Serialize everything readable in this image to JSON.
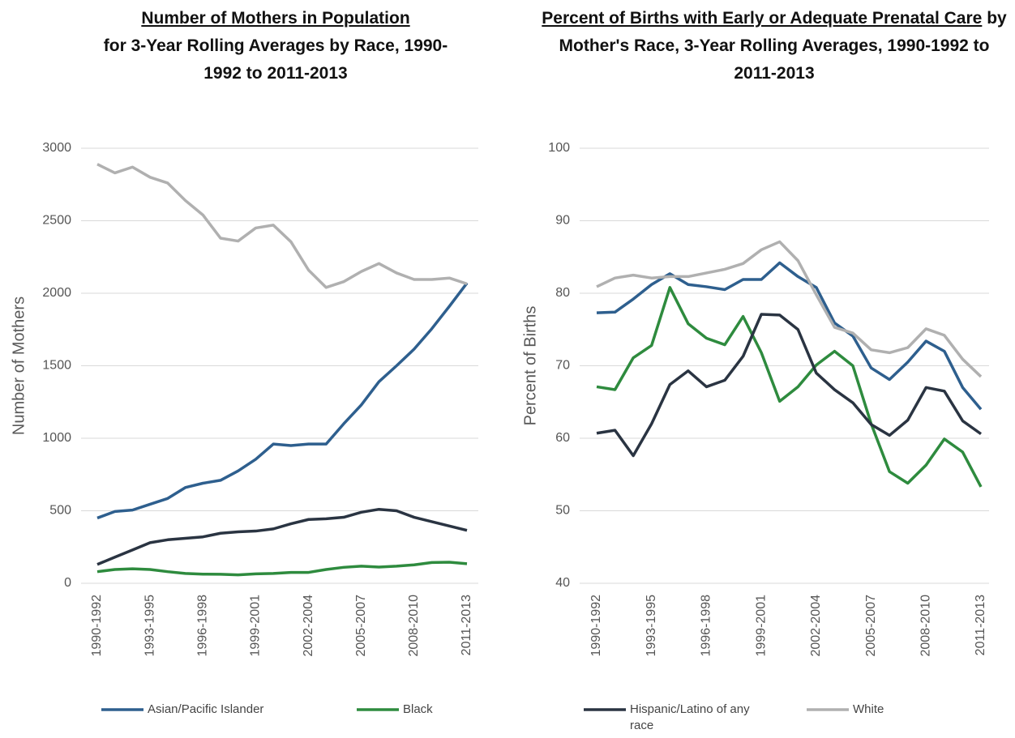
{
  "chart_data": [
    {
      "type": "line",
      "title": "Number of Mothers in Population",
      "subtitle": "for 3-Year Rolling Averages by Race, 1990-1992 to 2011-2013",
      "y_label": "Number of Mothers",
      "categories": [
        "1990-1992",
        null,
        null,
        "1993-1995",
        null,
        null,
        "1996-1998",
        null,
        null,
        "1999-2001",
        null,
        null,
        "2002-2004",
        null,
        null,
        "2005-2007",
        null,
        null,
        "2008-2010",
        null,
        null,
        "2011-2013"
      ],
      "ylim": [
        0,
        3000
      ],
      "yticks": [
        0,
        500,
        1000,
        1500,
        2000,
        2500,
        3000
      ],
      "grid": true,
      "series": [
        {
          "name": "Asian/Pacific Islander",
          "color": "#2e5f8e",
          "values": [
            450,
            495,
            505,
            545,
            585,
            660,
            690,
            710,
            775,
            855,
            960,
            950,
            960,
            960,
            1100,
            1230,
            1390,
            1500,
            1615,
            1755,
            1910,
            2070
          ]
        },
        {
          "name": "Black",
          "color": "#2e8b3e",
          "values": [
            80,
            95,
            100,
            95,
            80,
            68,
            63,
            62,
            58,
            65,
            68,
            75,
            75,
            95,
            110,
            118,
            112,
            118,
            127,
            143,
            145,
            135
          ]
        },
        {
          "color": "#2a3442",
          "values": [
            130,
            180,
            230,
            280,
            300,
            310,
            320,
            345,
            355,
            360,
            375,
            410,
            440,
            445,
            455,
            490,
            510,
            500,
            455,
            425,
            395,
            365
          ]
        },
        {
          "color": "#b0b0b0",
          "values": [
            2890,
            2830,
            2870,
            2800,
            2760,
            2640,
            2540,
            2380,
            2360,
            2450,
            2470,
            2355,
            2160,
            2040,
            2080,
            2150,
            2205,
            2140,
            2095,
            2095,
            2105,
            2065
          ]
        }
      ]
    },
    {
      "type": "line",
      "title": "Percent of Births with Early or Adequate Prenatal Care",
      "subtitle": "by Mother's Race, 3-Year Rolling Averages, 1990-1992 to 2011-2013",
      "y_label": "Percent of Births",
      "categories": [
        "1990-1992",
        null,
        null,
        "1993-1995",
        null,
        null,
        "1996-1998",
        null,
        null,
        "1999-2001",
        null,
        null,
        "2002-2004",
        null,
        null,
        "2005-2007",
        null,
        null,
        "2008-2010",
        null,
        null,
        "2011-2013"
      ],
      "ylim": [
        40,
        100
      ],
      "yticks": [
        40,
        50,
        60,
        70,
        80,
        90,
        100
      ],
      "grid": true,
      "series": [
        {
          "color": "#2e5f8e",
          "values": [
            77.3,
            77.4,
            79.2,
            81.2,
            82.7,
            81.2,
            80.9,
            80.5,
            81.9,
            81.9,
            84.2,
            82.3,
            80.8,
            75.9,
            74.1,
            69.7,
            68.1,
            70.5,
            73.4,
            72.0,
            67.0,
            64.0
          ]
        },
        {
          "color": "#2e8b3e",
          "values": [
            67.1,
            66.7,
            71.1,
            72.8,
            80.8,
            75.8,
            73.8,
            72.9,
            76.8,
            71.8,
            65.1,
            67.1,
            70.1,
            72.0,
            70.0,
            62.0,
            55.4,
            53.8,
            56.3,
            59.9,
            58.1,
            53.3
          ]
        },
        {
          "name": "Hispanic/Latino of any race",
          "color": "#2a3442",
          "values": [
            60.7,
            61.1,
            57.6,
            62.0,
            67.4,
            69.3,
            67.1,
            68.0,
            71.3,
            77.1,
            77.0,
            75.0,
            69.0,
            66.7,
            64.9,
            61.9,
            60.4,
            62.5,
            67.0,
            66.5,
            62.4,
            60.6
          ]
        },
        {
          "name": "White",
          "color": "#b0b0b0",
          "values": [
            80.9,
            82.1,
            82.5,
            82.1,
            82.3,
            82.3,
            82.8,
            83.3,
            84.1,
            86.0,
            87.1,
            84.5,
            79.8,
            75.3,
            74.5,
            72.2,
            71.8,
            72.5,
            75.1,
            74.2,
            70.9,
            68.5
          ]
        }
      ]
    }
  ]
}
